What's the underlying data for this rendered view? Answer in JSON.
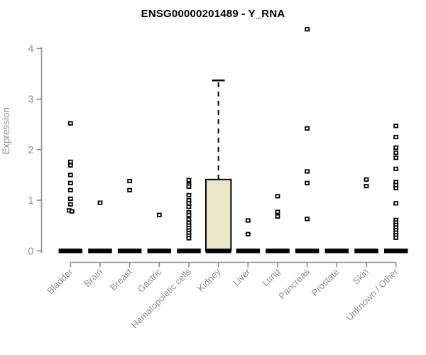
{
  "chart_data": {
    "type": "boxplot",
    "title": "ENSG00000201489 - Y_RNA",
    "ylabel": "Expression",
    "xlabel": "",
    "yticks": [
      0,
      1,
      2,
      3,
      4
    ],
    "ylim": [
      0,
      4.45
    ],
    "grid": false,
    "legend": "none",
    "colors": {
      "box_fill": "#ece5c8",
      "box_stroke": "#000000",
      "axis": "#8f8f8f",
      "tick_text": "#8f8f8f",
      "title_text": "#000000",
      "point": "#000000",
      "background": "#ffffff"
    },
    "categories": [
      {
        "label": "Bladder",
        "box": {
          "whisker_low": 0,
          "q1": 0,
          "median": 0,
          "q3": 0,
          "whisker_high": 0
        },
        "outliers": [
          2.52,
          1.76,
          1.69,
          1.5,
          1.34,
          1.2,
          1.03,
          0.92,
          {
            "v": 0.8,
            "dx": -2
          },
          {
            "v": 0.78,
            "dx": 2
          }
        ]
      },
      {
        "label": "Brain",
        "box": {
          "whisker_low": 0,
          "q1": 0,
          "median": 0,
          "q3": 0,
          "whisker_high": 0
        },
        "outliers": [
          0.95
        ]
      },
      {
        "label": "Breast",
        "box": {
          "whisker_low": 0,
          "q1": 0,
          "median": 0,
          "q3": 0,
          "whisker_high": 0
        },
        "outliers": [
          1.38,
          1.2
        ]
      },
      {
        "label": "Gastric",
        "box": {
          "whisker_low": 0,
          "q1": 0,
          "median": 0,
          "q3": 0,
          "whisker_high": 0
        },
        "outliers": [
          0.71
        ]
      },
      {
        "label": "Hematopoietic cells",
        "box": {
          "whisker_low": 0,
          "q1": 0,
          "median": 0,
          "q3": 0,
          "whisker_high": 0
        },
        "outliers": [
          1.4,
          1.31,
          1.27,
          1.1,
          1.0,
          0.94,
          0.87,
          0.76,
          0.71,
          0.62,
          0.55,
          0.5,
          0.45,
          0.4,
          0.35,
          0.3,
          0.25
        ]
      },
      {
        "label": "Kidney",
        "box": {
          "whisker_low": 0,
          "q1": 0,
          "median": 0,
          "q3": 1.41,
          "whisker_high": 3.37
        },
        "outliers": []
      },
      {
        "label": "Liver",
        "box": {
          "whisker_low": 0,
          "q1": 0,
          "median": 0,
          "q3": 0,
          "whisker_high": 0
        },
        "outliers": [
          0.6,
          0.33
        ]
      },
      {
        "label": "Lung",
        "box": {
          "whisker_low": 0,
          "q1": 0,
          "median": 0,
          "q3": 0,
          "whisker_high": 0
        },
        "outliers": [
          1.08,
          0.77,
          0.68
        ]
      },
      {
        "label": "Pancreas",
        "box": {
          "whisker_low": 0,
          "q1": 0,
          "median": 0,
          "q3": 0,
          "whisker_high": 0
        },
        "outliers": [
          4.38,
          2.42,
          1.57,
          1.34,
          0.63
        ]
      },
      {
        "label": "Prostate",
        "box": {
          "whisker_low": 0,
          "q1": 0,
          "median": 0,
          "q3": 0,
          "whisker_high": 0
        },
        "outliers": []
      },
      {
        "label": "Skin",
        "box": {
          "whisker_low": 0,
          "q1": 0,
          "median": 0,
          "q3": 0,
          "whisker_high": 0
        },
        "outliers": [
          1.41,
          1.28
        ]
      },
      {
        "label": "Unknown / Other",
        "box": {
          "whisker_low": 0,
          "q1": 0,
          "median": 0,
          "q3": 0,
          "whisker_high": 0
        },
        "outliers": [
          2.47,
          2.25,
          2.04,
          1.94,
          1.84,
          1.62,
          1.36,
          1.3,
          1.24,
          0.94,
          0.61,
          0.56,
          0.51,
          0.46,
          0.41,
          0.36,
          0.31,
          0.26
        ]
      }
    ]
  }
}
